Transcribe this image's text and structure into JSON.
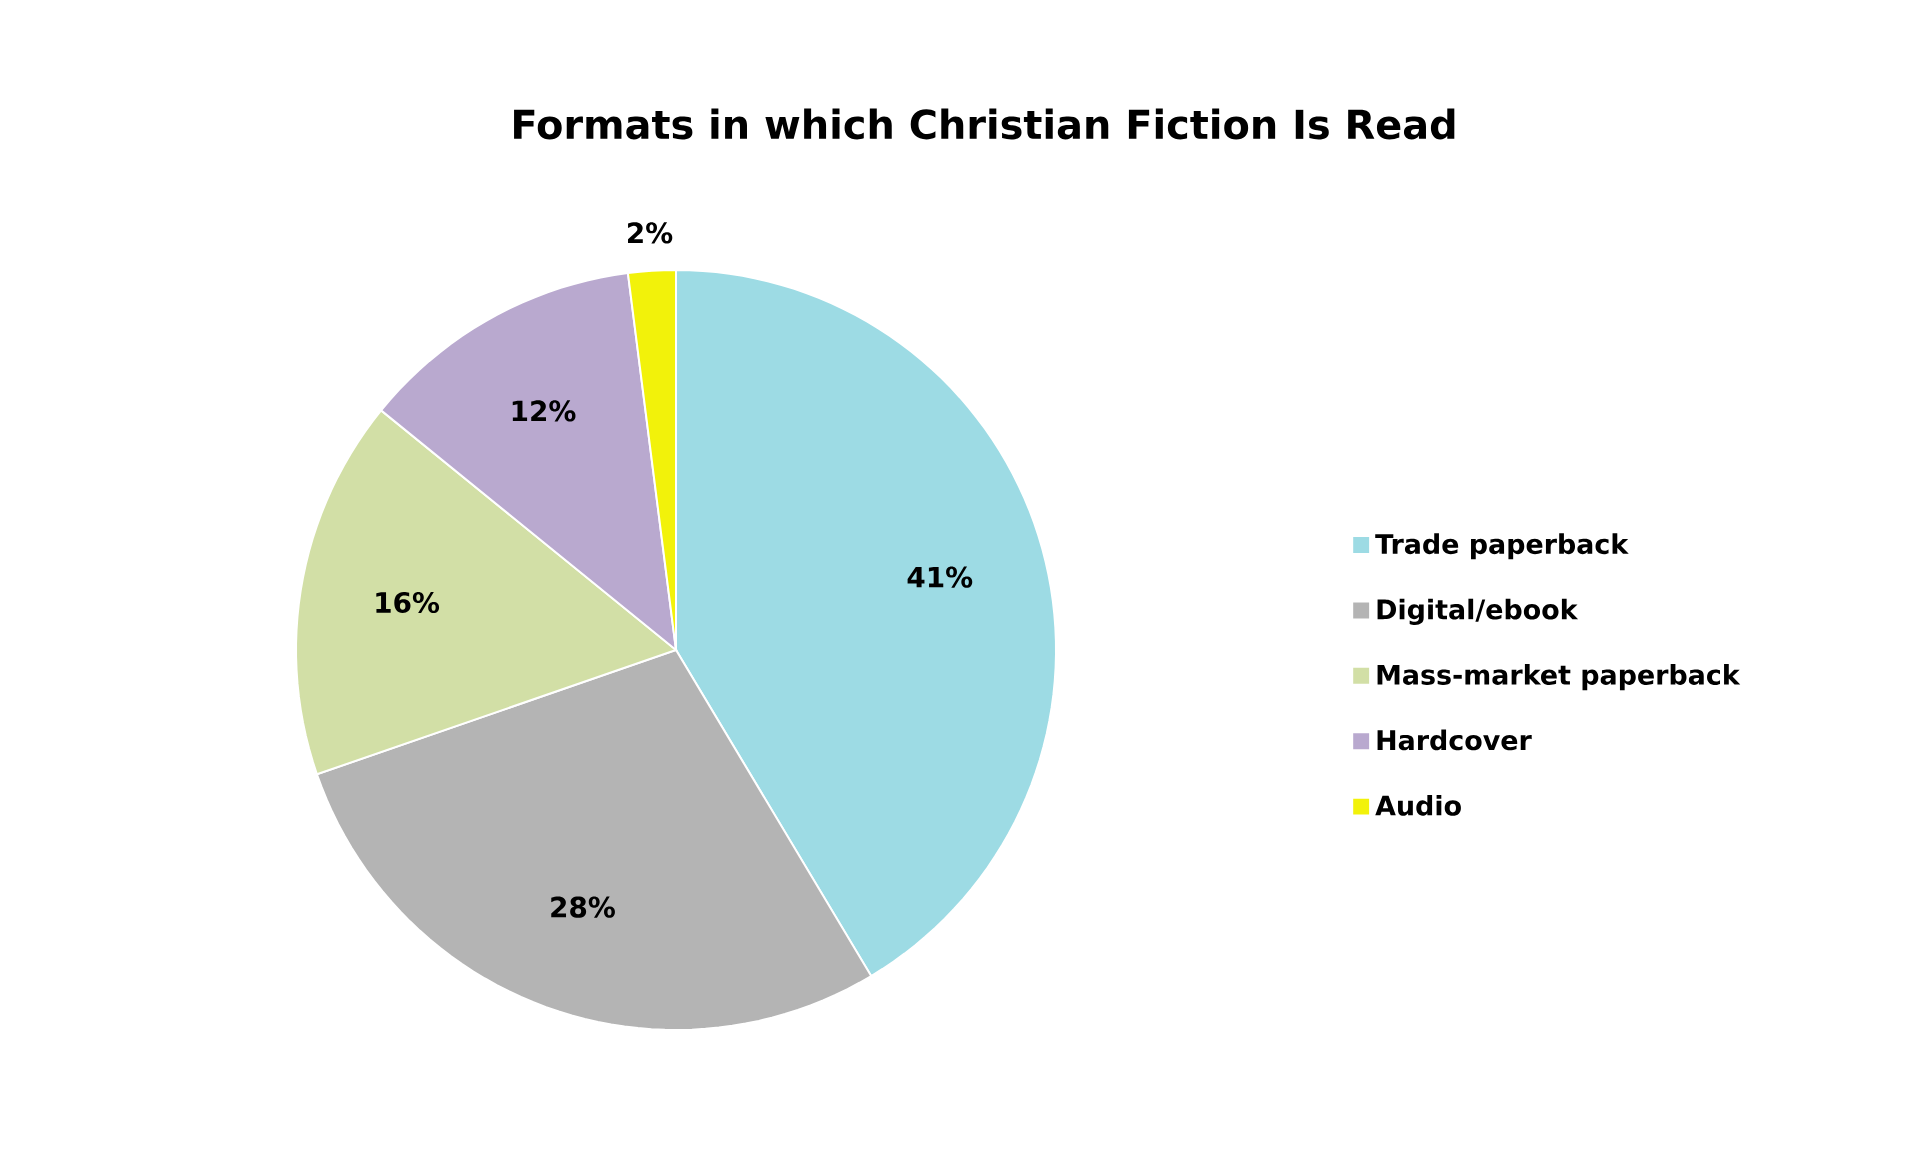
{
  "chart_data": {
    "type": "pie",
    "title": "Formats in which Christian Fiction Is Read",
    "categories": [
      "Trade paperback",
      "Digital/ebook",
      "Mass-market paperback",
      "Hardcover",
      "Audio"
    ],
    "values": [
      41,
      28,
      16,
      12,
      2
    ],
    "value_labels": [
      "41%",
      "28%",
      "16%",
      "12%",
      "2%"
    ],
    "colors": [
      "#9ddbe4",
      "#b4b4b4",
      "#d2dfa6",
      "#b9a9cf",
      "#f2f20a"
    ],
    "legend": "right"
  }
}
